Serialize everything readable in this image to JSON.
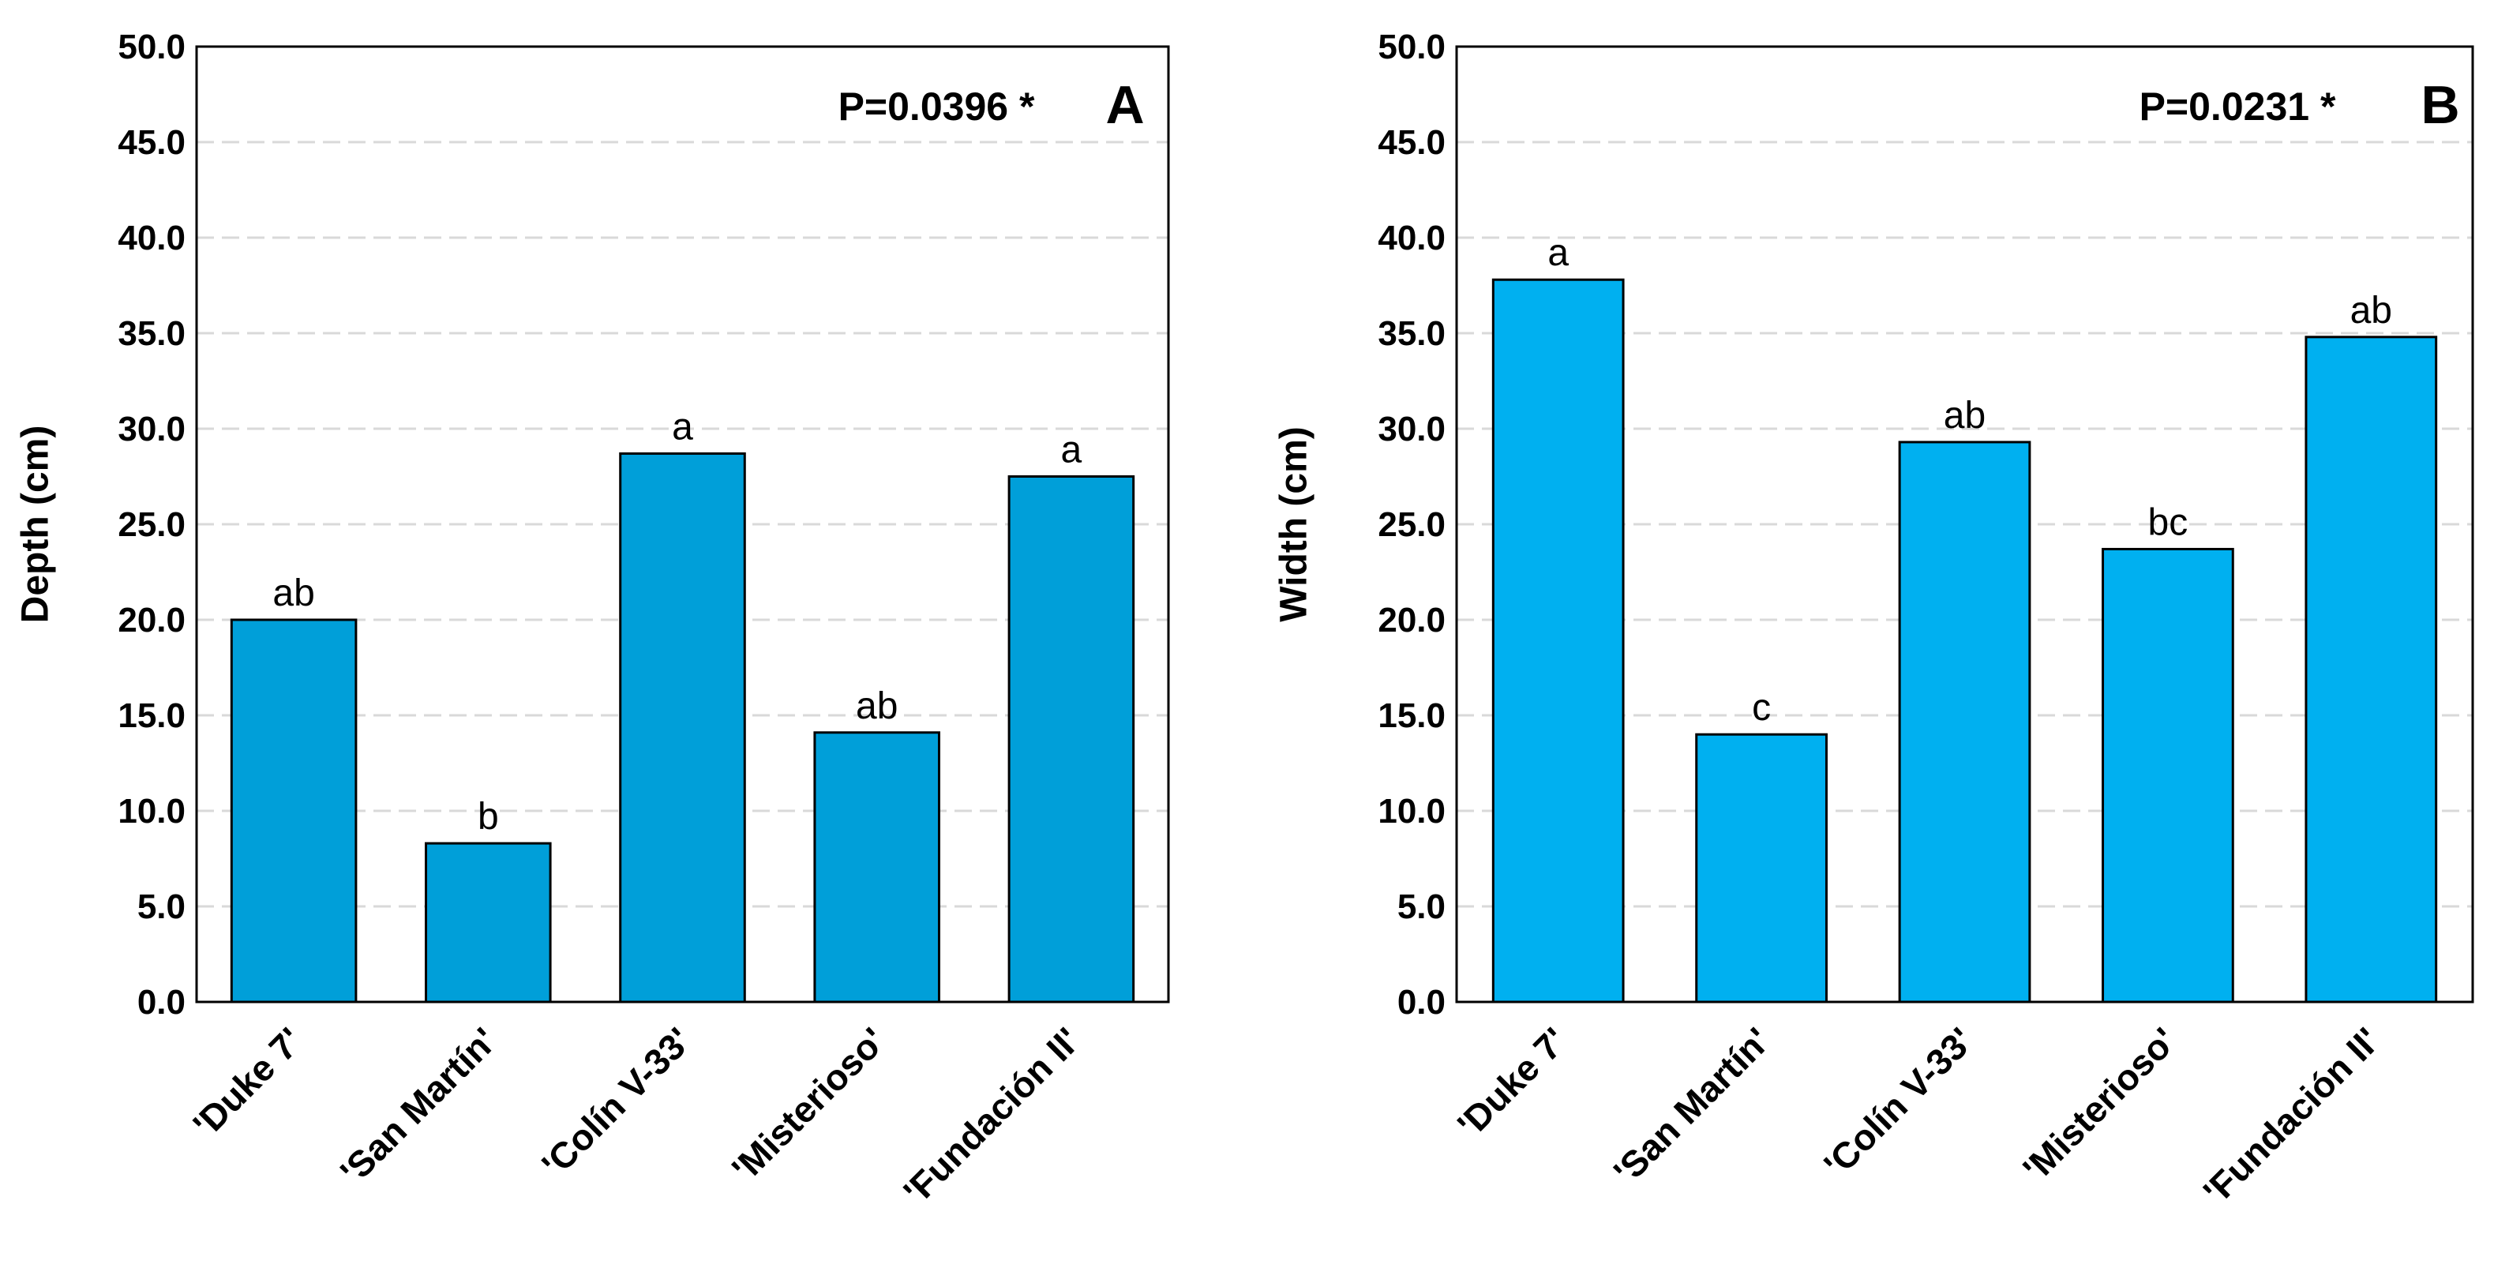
{
  "chart_data": [
    {
      "type": "bar",
      "y_label": "Depth (cm)",
      "annotation": "P=0.0396 *",
      "panel": "A",
      "categories": [
        "'Duke 7'",
        "'San Martín'",
        "'Colín V-33'",
        "'Misterioso'",
        "'Fundación II'"
      ],
      "values": [
        20.0,
        8.3,
        28.7,
        14.1,
        27.5
      ],
      "significance_letters": [
        "ab",
        "b",
        "a",
        "ab",
        "a"
      ],
      "color": "#009fd9",
      "ylim": [
        0,
        50
      ],
      "yticks": [
        {
          "value": 0,
          "label": "0.0"
        },
        {
          "value": 5,
          "label": "5.0"
        },
        {
          "value": 10,
          "label": "10.0"
        },
        {
          "value": 15,
          "label": "15.0"
        },
        {
          "value": 20,
          "label": "20.0"
        },
        {
          "value": 25,
          "label": "25.0"
        },
        {
          "value": 30,
          "label": "30.0"
        },
        {
          "value": 35,
          "label": "35.0"
        },
        {
          "value": 40,
          "label": "40.0"
        },
        {
          "value": 45,
          "label": "45.0"
        },
        {
          "value": 50,
          "label": "50.0"
        }
      ],
      "grid": true
    },
    {
      "type": "bar",
      "y_label": "Width (cm)",
      "annotation": "P=0.0231 *",
      "panel": "B",
      "categories": [
        "'Duke 7'",
        "'San Martín'",
        "'Colín V-33'",
        "'Misterioso'",
        "'Fundación II'"
      ],
      "values": [
        37.8,
        14.0,
        29.3,
        23.7,
        34.8
      ],
      "significance_letters": [
        "a",
        "c",
        "ab",
        "bc",
        "ab"
      ],
      "color": "#00b0f0",
      "ylim": [
        0,
        50
      ],
      "yticks": [
        {
          "value": 0,
          "label": "0.0"
        },
        {
          "value": 5,
          "label": "5.0"
        },
        {
          "value": 10,
          "label": "10.0"
        },
        {
          "value": 15,
          "label": "15.0"
        },
        {
          "value": 20,
          "label": "20.0"
        },
        {
          "value": 25,
          "label": "25.0"
        },
        {
          "value": 30,
          "label": "30.0"
        },
        {
          "value": 35,
          "label": "35.0"
        },
        {
          "value": 40,
          "label": "40.0"
        },
        {
          "value": 45,
          "label": "45.0"
        },
        {
          "value": 50,
          "label": "50.0"
        }
      ],
      "grid": true
    }
  ]
}
